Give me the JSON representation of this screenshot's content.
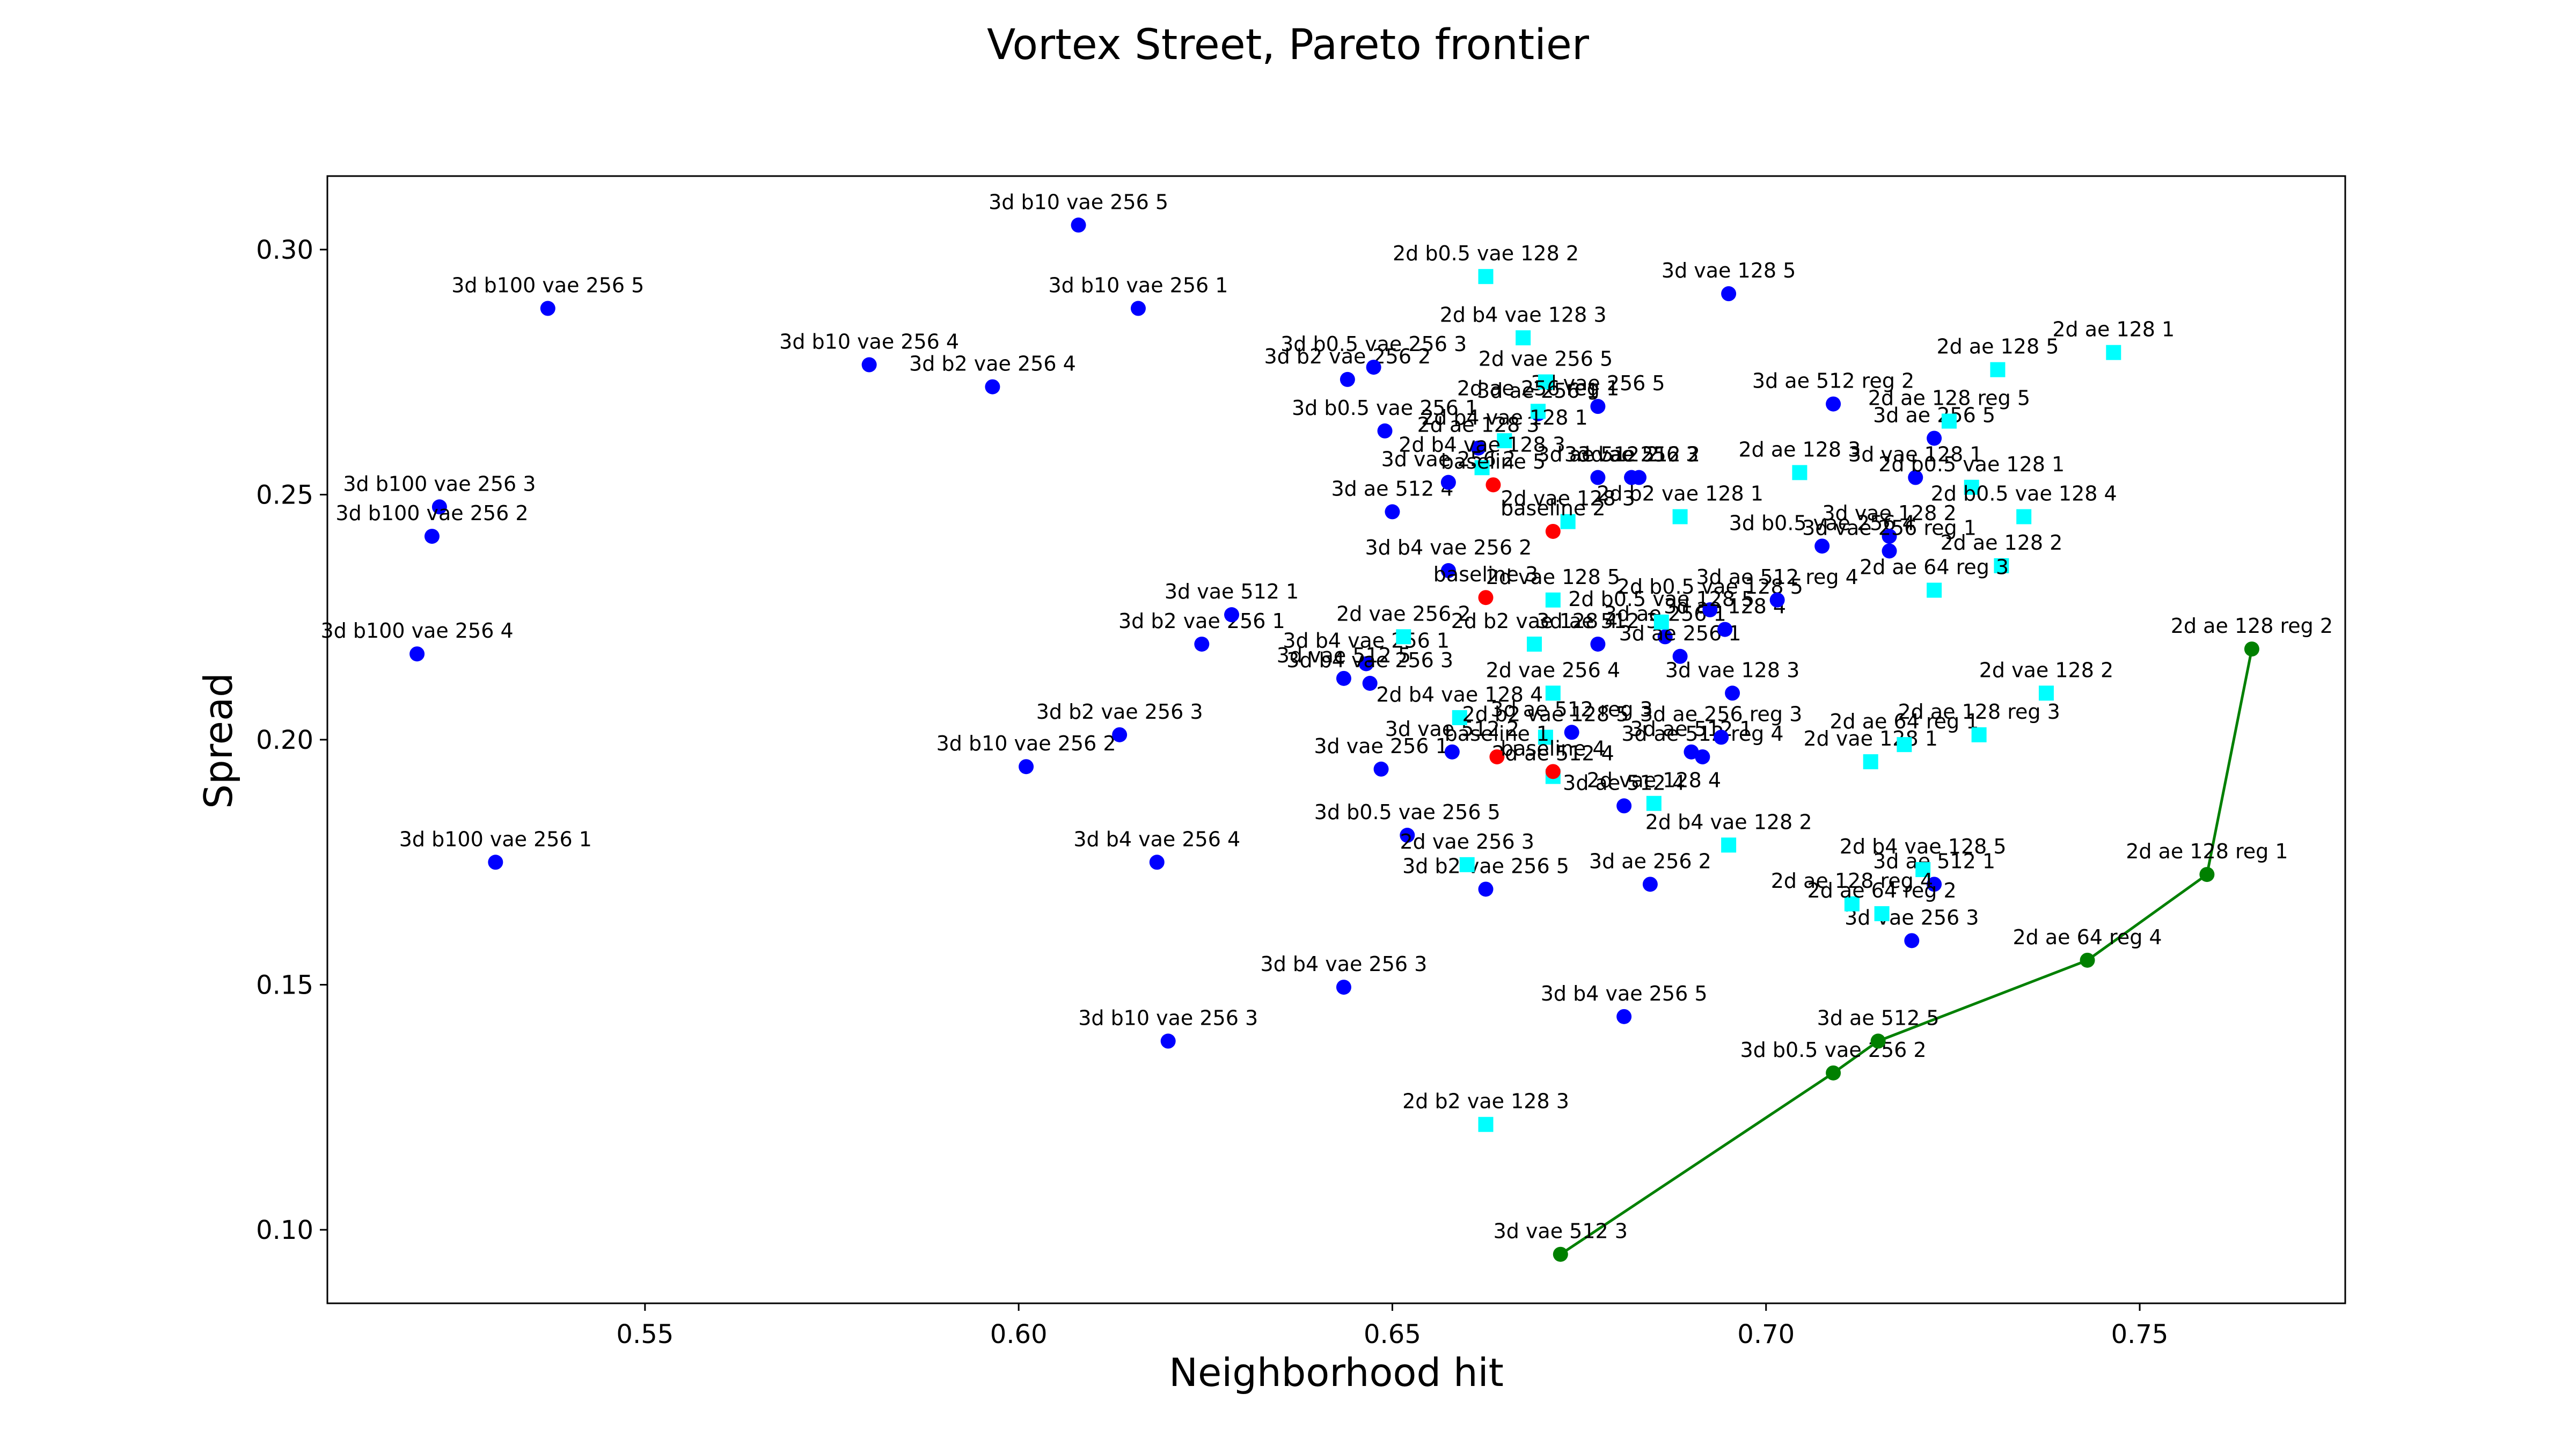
{
  "chart_data": {
    "type": "scatter",
    "title": "Vortex Street, Pareto frontier",
    "xlabel": "Neighborhood hit",
    "ylabel": "Spread",
    "xlim": [
      0.5075,
      0.7775
    ],
    "ylim": [
      0.085,
      0.315
    ],
    "xticks": [
      "0.55",
      "0.60",
      "0.65",
      "0.70",
      "0.75"
    ],
    "yticks": [
      "0.10",
      "0.15",
      "0.20",
      "0.25",
      "0.30"
    ],
    "grid": false,
    "legend": "none",
    "colors": {
      "3d_point": "#0000ff",
      "2d_point": "#00ffff",
      "baseline_point": "#ff0000",
      "frontier": "#008000",
      "frame": "#000000"
    },
    "series": [
      {
        "marker": "circle",
        "color": "#0000ff",
        "points": [
          {
            "x": 0.537,
            "y": 0.288,
            "label": "3d b100 vae 256 5"
          },
          {
            "x": 0.5225,
            "y": 0.2475,
            "label": "3d b100 vae 256 3"
          },
          {
            "x": 0.5215,
            "y": 0.2415,
            "label": "3d b100 vae 256 2"
          },
          {
            "x": 0.5195,
            "y": 0.2175,
            "label": "3d b100 vae 256 4"
          },
          {
            "x": 0.53,
            "y": 0.175,
            "label": "3d b100 vae 256 1"
          },
          {
            "x": 0.608,
            "y": 0.305,
            "label": "3d b10 vae 256 5"
          },
          {
            "x": 0.616,
            "y": 0.288,
            "label": "3d b10 vae 256 1"
          },
          {
            "x": 0.58,
            "y": 0.2765,
            "label": "3d b10 vae 256 4"
          },
          {
            "x": 0.601,
            "y": 0.1945,
            "label": "3d b10 vae 256 2"
          },
          {
            "x": 0.62,
            "y": 0.1385,
            "label": "3d b10 vae 256 3"
          },
          {
            "x": 0.5965,
            "y": 0.272,
            "label": "3d b2 vae 256 4"
          },
          {
            "x": 0.6245,
            "y": 0.2195,
            "label": "3d b2 vae 256 1"
          },
          {
            "x": 0.6135,
            "y": 0.201,
            "label": "3d b2 vae 256 3"
          },
          {
            "x": 0.6625,
            "y": 0.1695,
            "label": "3d b2 vae 256 5"
          },
          {
            "x": 0.644,
            "y": 0.2735,
            "label": "3d b2 vae 256 2"
          },
          {
            "x": 0.6475,
            "y": 0.276,
            "label": "3d b0.5 vae 256 3"
          },
          {
            "x": 0.649,
            "y": 0.263,
            "label": "3d b0.5 vae 256 1"
          },
          {
            "x": 0.652,
            "y": 0.1805,
            "label": "3d b0.5 vae 256 5"
          },
          {
            "x": 0.6285,
            "y": 0.2255,
            "label": "3d vae 512 1"
          },
          {
            "x": 0.6465,
            "y": 0.2155,
            "label": "3d b4 vae 256 1"
          },
          {
            "x": 0.6435,
            "y": 0.2125,
            "label": "3d vae 512 5"
          },
          {
            "x": 0.647,
            "y": 0.2115,
            "label": "3d b4 vae 256 3"
          },
          {
            "x": 0.6185,
            "y": 0.175,
            "label": "3d b4 vae 256 4"
          },
          {
            "x": 0.6435,
            "y": 0.1495,
            "label": "3d b4 vae 256 3"
          },
          {
            "x": 0.681,
            "y": 0.1435,
            "label": "3d b4 vae 256 5"
          },
          {
            "x": 0.6575,
            "y": 0.2345,
            "label": "3d b4 vae 256 2"
          },
          {
            "x": 0.65,
            "y": 0.2465,
            "label": "3d ae 512 4"
          },
          {
            "x": 0.6485,
            "y": 0.194,
            "label": "3d vae 256 1"
          },
          {
            "x": 0.695,
            "y": 0.291,
            "label": "3d vae 128 5"
          },
          {
            "x": 0.6775,
            "y": 0.268,
            "label": "3d vae 256 5"
          },
          {
            "x": 0.6695,
            "y": 0.2665,
            "label": "3d ae 256 1"
          },
          {
            "x": 0.6775,
            "y": 0.2535,
            "label": "3d ae 512 2"
          },
          {
            "x": 0.682,
            "y": 0.2535,
            "label": "3d vae 256 3"
          },
          {
            "x": 0.683,
            "y": 0.2535,
            "label": "3d ae 512 2"
          },
          {
            "x": 0.6615,
            "y": 0.2595,
            "label": "2d ae 128 3"
          },
          {
            "x": 0.6575,
            "y": 0.2525,
            "label": "3d vae 256 2"
          },
          {
            "x": 0.6775,
            "y": 0.2195,
            "label": "3d ae 512 3"
          },
          {
            "x": 0.6865,
            "y": 0.221,
            "label": "3d ae 256 1"
          },
          {
            "x": 0.6885,
            "y": 0.217,
            "label": "3d ae 256 1"
          },
          {
            "x": 0.6945,
            "y": 0.2225,
            "label": "3d ae 128 4"
          },
          {
            "x": 0.6925,
            "y": 0.2265,
            "label": "2d b0.5 vae 128 5"
          },
          {
            "x": 0.674,
            "y": 0.2015,
            "label": "3d ae 512 reg 3"
          },
          {
            "x": 0.6915,
            "y": 0.1965,
            "label": "3d ae 512 reg 4"
          },
          {
            "x": 0.69,
            "y": 0.1975,
            "label": "3d ae 512 1"
          },
          {
            "x": 0.694,
            "y": 0.2005,
            "label": "3d ae 256 reg 3"
          },
          {
            "x": 0.6955,
            "y": 0.2095,
            "label": "3d vae 128 3"
          },
          {
            "x": 0.681,
            "y": 0.1865,
            "label": "3d ae 512 4"
          },
          {
            "x": 0.6845,
            "y": 0.1705,
            "label": "3d ae 256 2"
          },
          {
            "x": 0.658,
            "y": 0.1975,
            "label": "3d vae 512 2"
          },
          {
            "x": 0.7015,
            "y": 0.2285,
            "label": "3d ae 512 reg 4"
          },
          {
            "x": 0.709,
            "y": 0.2685,
            "label": "3d ae 512 reg 2"
          },
          {
            "x": 0.7225,
            "y": 0.2615,
            "label": "3d ae 256 5"
          },
          {
            "x": 0.72,
            "y": 0.2535,
            "label": "3d vae 128 1"
          },
          {
            "x": 0.7075,
            "y": 0.2395,
            "label": "3d b0.5 vae 256 4"
          },
          {
            "x": 0.7165,
            "y": 0.2415,
            "label": "3d vae 128 2"
          },
          {
            "x": 0.7165,
            "y": 0.2385,
            "label": "3d vae 256 reg 1"
          },
          {
            "x": 0.7225,
            "y": 0.1705,
            "label": "3d ae 512 1"
          },
          {
            "x": 0.7195,
            "y": 0.159,
            "label": "3d vae 256 3"
          }
        ]
      },
      {
        "marker": "square",
        "color": "#00ffff",
        "points": [
          {
            "x": 0.6625,
            "y": 0.2945,
            "label": "2d b0.5 vae 128 2"
          },
          {
            "x": 0.6675,
            "y": 0.282,
            "label": "2d b4 vae 128 3"
          },
          {
            "x": 0.6705,
            "y": 0.273,
            "label": "2d vae 256 5"
          },
          {
            "x": 0.6695,
            "y": 0.267,
            "label": "2d ae 256 reg 1"
          },
          {
            "x": 0.665,
            "y": 0.261,
            "label": "2d b4 vae 128 1"
          },
          {
            "x": 0.662,
            "y": 0.2555,
            "label": "2d b4 vae 128 3"
          },
          {
            "x": 0.6735,
            "y": 0.2445,
            "label": "2d vae 128 3"
          },
          {
            "x": 0.6885,
            "y": 0.2455,
            "label": "2d b2 vae 128 1"
          },
          {
            "x": 0.7045,
            "y": 0.2545,
            "label": "2d ae 128 3"
          },
          {
            "x": 0.731,
            "y": 0.2755,
            "label": "2d ae 128 5"
          },
          {
            "x": 0.7465,
            "y": 0.279,
            "label": "2d ae 128 1"
          },
          {
            "x": 0.7245,
            "y": 0.265,
            "label": "2d ae 128 reg 5"
          },
          {
            "x": 0.7275,
            "y": 0.2515,
            "label": "2d b0.5 vae 128 1"
          },
          {
            "x": 0.7345,
            "y": 0.2455,
            "label": "2d b0.5 vae 128 4"
          },
          {
            "x": 0.7315,
            "y": 0.2355,
            "label": "2d ae 128 2"
          },
          {
            "x": 0.7225,
            "y": 0.2305,
            "label": "2d ae 64 reg 3"
          },
          {
            "x": 0.6715,
            "y": 0.2285,
            "label": "2d vae 128 5"
          },
          {
            "x": 0.669,
            "y": 0.2195,
            "label": "2d b2 vae 128 4"
          },
          {
            "x": 0.6515,
            "y": 0.221,
            "label": "2d vae 256 2"
          },
          {
            "x": 0.686,
            "y": 0.224,
            "label": "2d b0.5 vae 128 5"
          },
          {
            "x": 0.6715,
            "y": 0.2095,
            "label": "2d vae 256 4"
          },
          {
            "x": 0.659,
            "y": 0.2045,
            "label": "2d b4 vae 128 4"
          },
          {
            "x": 0.6705,
            "y": 0.2005,
            "label": "2d b2 vae 128 5"
          },
          {
            "x": 0.6715,
            "y": 0.1925,
            "label": "2d ae 512 4"
          },
          {
            "x": 0.685,
            "y": 0.187,
            "label": "2d vae 128 4"
          },
          {
            "x": 0.695,
            "y": 0.1785,
            "label": "2d b4 vae 128 2"
          },
          {
            "x": 0.714,
            "y": 0.1955,
            "label": "2d vae 128 1"
          },
          {
            "x": 0.7185,
            "y": 0.199,
            "label": "2d ae 64 reg 1"
          },
          {
            "x": 0.7285,
            "y": 0.201,
            "label": "2d ae 128 reg 3"
          },
          {
            "x": 0.7375,
            "y": 0.2095,
            "label": "2d vae 128 2"
          },
          {
            "x": 0.66,
            "y": 0.1745,
            "label": "2d vae 256 3"
          },
          {
            "x": 0.721,
            "y": 0.1735,
            "label": "2d b4 vae 128 5"
          },
          {
            "x": 0.7115,
            "y": 0.1665,
            "label": "2d ae 128 reg 4"
          },
          {
            "x": 0.7155,
            "y": 0.1645,
            "label": "2d ae 64 reg 2"
          },
          {
            "x": 0.6625,
            "y": 0.1215,
            "label": "2d b2 vae 128 3"
          }
        ]
      },
      {
        "marker": "circle",
        "color": "#ff0000",
        "points": [
          {
            "x": 0.6635,
            "y": 0.252,
            "label": "baseline 5"
          },
          {
            "x": 0.6715,
            "y": 0.2425,
            "label": "baseline 2"
          },
          {
            "x": 0.6625,
            "y": 0.229,
            "label": "baseline 3"
          },
          {
            "x": 0.664,
            "y": 0.1965,
            "label": "baseline 1"
          },
          {
            "x": 0.6715,
            "y": 0.1935,
            "label": "baseline 4"
          }
        ]
      },
      {
        "marker": "circle",
        "color": "#008000",
        "line": true,
        "points": [
          {
            "x": 0.6725,
            "y": 0.095,
            "label": "3d vae 512 3"
          },
          {
            "x": 0.709,
            "y": 0.132,
            "label": "3d b0.5 vae 256 2"
          },
          {
            "x": 0.715,
            "y": 0.1385,
            "label": "3d ae 512 5"
          },
          {
            "x": 0.743,
            "y": 0.155,
            "label": "2d ae 64 reg 4"
          },
          {
            "x": 0.759,
            "y": 0.1725,
            "label": "2d ae 128 reg 1"
          },
          {
            "x": 0.765,
            "y": 0.2185,
            "label": "2d ae 128 reg 2"
          }
        ]
      }
    ]
  }
}
